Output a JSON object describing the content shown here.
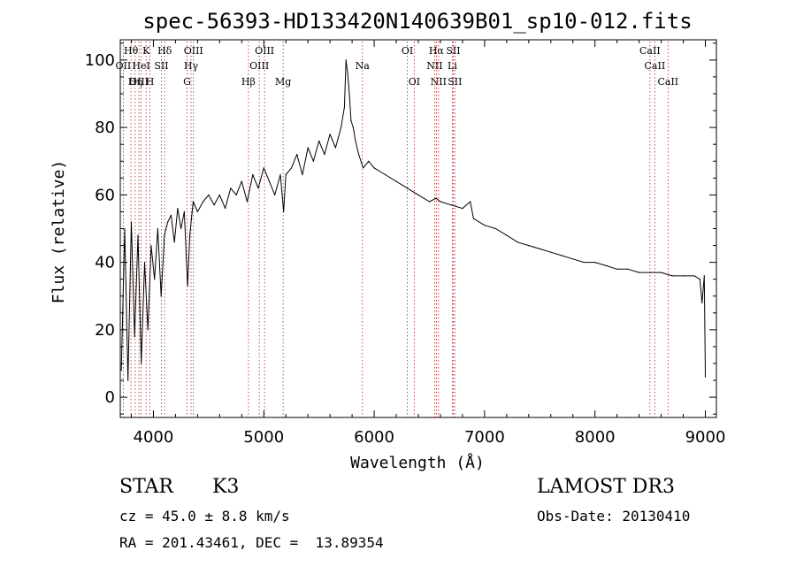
{
  "chart_data": {
    "type": "line",
    "title": "spec-56393-HD133420N140639B01_sp10-012.fits",
    "xlabel": "Wavelength (Å)",
    "ylabel": "Flux (relative)",
    "xlim": [
      3700,
      9100
    ],
    "ylim": [
      -6,
      106
    ],
    "xticks": [
      4000,
      5000,
      6000,
      7000,
      8000,
      9000
    ],
    "yticks": [
      0,
      20,
      40,
      60,
      80,
      100
    ],
    "series": [
      {
        "name": "spectrum",
        "x": [
          3710,
          3740,
          3770,
          3800,
          3830,
          3860,
          3890,
          3920,
          3950,
          3980,
          4010,
          4040,
          4070,
          4100,
          4130,
          4160,
          4190,
          4220,
          4250,
          4280,
          4310,
          4330,
          4360,
          4400,
          4450,
          4500,
          4550,
          4600,
          4650,
          4700,
          4750,
          4800,
          4850,
          4900,
          4950,
          5000,
          5050,
          5100,
          5150,
          5180,
          5200,
          5250,
          5300,
          5350,
          5400,
          5450,
          5500,
          5550,
          5600,
          5650,
          5700,
          5730,
          5745,
          5760,
          5775,
          5790,
          5810,
          5830,
          5860,
          5900,
          5950,
          6000,
          6100,
          6200,
          6300,
          6400,
          6500,
          6560,
          6600,
          6700,
          6800,
          6870,
          6900,
          7000,
          7100,
          7200,
          7300,
          7400,
          7500,
          7600,
          7700,
          7800,
          7900,
          8000,
          8100,
          8200,
          8300,
          8400,
          8500,
          8600,
          8700,
          8800,
          8900,
          8950,
          8970,
          8990,
          9000
        ],
        "y": [
          8,
          50,
          5,
          52,
          18,
          48,
          10,
          40,
          20,
          45,
          35,
          50,
          30,
          48,
          52,
          54,
          46,
          56,
          50,
          55,
          33,
          48,
          58,
          55,
          58,
          60,
          57,
          60,
          56,
          62,
          60,
          64,
          58,
          66,
          62,
          68,
          64,
          60,
          66,
          55,
          66,
          68,
          72,
          66,
          74,
          70,
          76,
          72,
          78,
          74,
          80,
          86,
          100,
          96,
          90,
          82,
          80,
          76,
          72,
          68,
          70,
          68,
          66,
          64,
          62,
          60,
          58,
          59,
          58,
          57,
          56,
          58,
          53,
          51,
          50,
          48,
          46,
          45,
          44,
          43,
          42,
          41,
          40,
          40,
          39,
          38,
          38,
          37,
          37,
          37,
          36,
          36,
          36,
          35,
          28,
          36,
          6
        ]
      }
    ],
    "lines": [
      {
        "label": "Hθ",
        "wl": 3797,
        "row": 0
      },
      {
        "label": "OII",
        "wl": 3727,
        "row": 1
      },
      {
        "label": "OIII",
        "wl": 3869,
        "row": 2
      },
      {
        "label": "K",
        "wl": 3934,
        "row": 0
      },
      {
        "label": "H",
        "wl": 3969,
        "row": 2
      },
      {
        "label": "HeI",
        "wl": 3889,
        "row": 1
      },
      {
        "label": "Hη",
        "wl": 3835,
        "row": 2
      },
      {
        "label": "SII",
        "wl": 4072,
        "row": 1
      },
      {
        "label": "Hδ",
        "wl": 4102,
        "row": 0
      },
      {
        "label": "G",
        "wl": 4305,
        "row": 2
      },
      {
        "label": "Hγ",
        "wl": 4341,
        "row": 1
      },
      {
        "label": "OIII",
        "wl": 4363,
        "row": 0
      },
      {
        "label": "Hβ",
        "wl": 4861,
        "row": 2
      },
      {
        "label": "OIII",
        "wl": 4959,
        "row": 1
      },
      {
        "label": "OIII",
        "wl": 5007,
        "row": 0
      },
      {
        "label": "Mg",
        "wl": 5175,
        "row": 2
      },
      {
        "label": "Na",
        "wl": 5893,
        "row": 1
      },
      {
        "label": "OI",
        "wl": 6300,
        "row": 0
      },
      {
        "label": "OI",
        "wl": 6363,
        "row": 2
      },
      {
        "label": "NII",
        "wl": 6548,
        "row": 1
      },
      {
        "label": "Hα",
        "wl": 6563,
        "row": 0
      },
      {
        "label": "NII",
        "wl": 6583,
        "row": 2
      },
      {
        "label": "Li",
        "wl": 6708,
        "row": 1
      },
      {
        "label": "SII",
        "wl": 6716,
        "row": 0
      },
      {
        "label": "SII",
        "wl": 6731,
        "row": 2
      },
      {
        "label": "CaII",
        "wl": 8498,
        "row": 0
      },
      {
        "label": "CaII",
        "wl": 8542,
        "row": 1
      },
      {
        "label": "CaII",
        "wl": 8662,
        "row": 2
      }
    ]
  },
  "info": {
    "object_class": "STAR",
    "subclass": "K3",
    "survey": "LAMOST DR3",
    "redshift": "cz = 45.0 ± 8.8 km/s",
    "obs_date": "Obs-Date: 20130410",
    "coords": "RA = 201.43461, DEC =  13.89354"
  }
}
